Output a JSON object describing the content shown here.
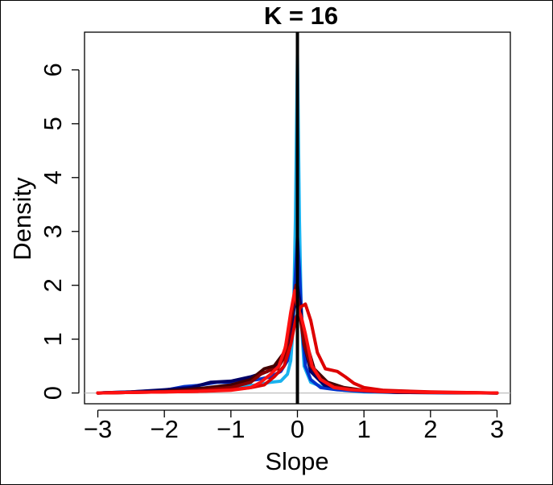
{
  "chart_data": {
    "type": "line",
    "title": "K = 16",
    "xlabel": "Slope",
    "ylabel": "Density",
    "xlim": [
      -3.2,
      3.2
    ],
    "ylim": [
      -0.2,
      6.7
    ],
    "x_ticks": [
      -3,
      -2,
      -1,
      0,
      1,
      2,
      3
    ],
    "x_tick_labels": [
      "−3",
      "−2",
      "−1",
      "0",
      "1",
      "2",
      "3"
    ],
    "y_ticks": [
      0,
      1,
      2,
      3,
      4,
      5,
      6
    ],
    "y_tick_labels": [
      "0",
      "1",
      "2",
      "3",
      "4",
      "5",
      "6"
    ],
    "reference_lines": {
      "horizontal_y": 0,
      "horizontal_color": "#bebebe",
      "vertical_x": 0,
      "vertical_color": "#000000"
    },
    "series": [
      {
        "name": "light-blue",
        "color": "#1ab2ee",
        "points": [
          [
            -3,
            0
          ],
          [
            -2.5,
            0.01
          ],
          [
            -2,
            0.04
          ],
          [
            -1.8,
            0.09
          ],
          [
            -1.5,
            0.08
          ],
          [
            -1.2,
            0.1
          ],
          [
            -1,
            0.12
          ],
          [
            -0.6,
            0.15
          ],
          [
            -0.4,
            0.2
          ],
          [
            -0.25,
            0.22
          ],
          [
            -0.15,
            0.35
          ],
          [
            -0.1,
            0.6
          ],
          [
            -0.06,
            1.3
          ],
          [
            -0.03,
            3.2
          ],
          [
            0,
            6.3
          ],
          [
            0.03,
            3.2
          ],
          [
            0.06,
            1.3
          ],
          [
            0.1,
            0.5
          ],
          [
            0.2,
            0.2
          ],
          [
            0.4,
            0.1
          ],
          [
            0.7,
            0.05
          ],
          [
            1,
            0.02
          ],
          [
            1.5,
            0.01
          ],
          [
            3,
            0
          ]
        ]
      },
      {
        "name": "blue",
        "color": "#0033cc",
        "points": [
          [
            -3,
            0
          ],
          [
            -2.5,
            0.02
          ],
          [
            -2,
            0.05
          ],
          [
            -1.7,
            0.12
          ],
          [
            -1.5,
            0.14
          ],
          [
            -1.2,
            0.2
          ],
          [
            -0.9,
            0.2
          ],
          [
            -0.6,
            0.25
          ],
          [
            -0.4,
            0.3
          ],
          [
            -0.25,
            0.4
          ],
          [
            -0.15,
            0.6
          ],
          [
            -0.08,
            1.1
          ],
          [
            -0.03,
            2.2
          ],
          [
            0,
            2.9
          ],
          [
            0.03,
            2.3
          ],
          [
            0.07,
            1.2
          ],
          [
            0.12,
            0.5
          ],
          [
            0.2,
            0.25
          ],
          [
            0.35,
            0.1
          ],
          [
            0.6,
            0.06
          ],
          [
            1,
            0.03
          ],
          [
            1.5,
            0.01
          ],
          [
            3,
            0
          ]
        ]
      },
      {
        "name": "navy",
        "color": "#000066",
        "points": [
          [
            -3,
            0
          ],
          [
            -2.5,
            0.02
          ],
          [
            -2,
            0.06
          ],
          [
            -1.6,
            0.1
          ],
          [
            -1.3,
            0.2
          ],
          [
            -1,
            0.22
          ],
          [
            -0.7,
            0.3
          ],
          [
            -0.45,
            0.4
          ],
          [
            -0.3,
            0.5
          ],
          [
            -0.15,
            0.8
          ],
          [
            -0.06,
            1.5
          ],
          [
            0,
            2.0
          ],
          [
            0.05,
            1.6
          ],
          [
            0.1,
            0.9
          ],
          [
            0.2,
            0.4
          ],
          [
            0.4,
            0.15
          ],
          [
            0.7,
            0.08
          ],
          [
            1,
            0.04
          ],
          [
            1.5,
            0.01
          ],
          [
            3,
            0
          ]
        ]
      },
      {
        "name": "dark-red",
        "color": "#440000",
        "points": [
          [
            -3,
            0
          ],
          [
            -2.5,
            0.01
          ],
          [
            -2,
            0.03
          ],
          [
            -1.5,
            0.08
          ],
          [
            -1,
            0.15
          ],
          [
            -0.7,
            0.25
          ],
          [
            -0.5,
            0.45
          ],
          [
            -0.35,
            0.5
          ],
          [
            -0.2,
            0.75
          ],
          [
            -0.1,
            1.3
          ],
          [
            -0.04,
            1.9
          ],
          [
            0,
            1.6
          ],
          [
            0.05,
            1.45
          ],
          [
            0.12,
            1.0
          ],
          [
            0.25,
            0.45
          ],
          [
            0.45,
            0.2
          ],
          [
            0.7,
            0.1
          ],
          [
            1,
            0.05
          ],
          [
            1.5,
            0.02
          ],
          [
            3,
            0
          ]
        ]
      },
      {
        "name": "maroon",
        "color": "#880000",
        "points": [
          [
            -3,
            0
          ],
          [
            -2.5,
            0.01
          ],
          [
            -2,
            0.02
          ],
          [
            -1.5,
            0.05
          ],
          [
            -1,
            0.1
          ],
          [
            -0.7,
            0.2
          ],
          [
            -0.55,
            0.35
          ],
          [
            -0.42,
            0.42
          ],
          [
            -0.3,
            0.45
          ],
          [
            -0.18,
            0.7
          ],
          [
            -0.08,
            1.5
          ],
          [
            -0.02,
            2.0
          ],
          [
            0.03,
            1.5
          ],
          [
            0.1,
            0.9
          ],
          [
            0.2,
            0.5
          ],
          [
            0.35,
            0.25
          ],
          [
            0.55,
            0.12
          ],
          [
            0.8,
            0.07
          ],
          [
            1.2,
            0.03
          ],
          [
            2,
            0.01
          ],
          [
            3,
            0
          ]
        ]
      },
      {
        "name": "red",
        "color": "#dd0000",
        "points": [
          [
            -3,
            0
          ],
          [
            -2.5,
            0.01
          ],
          [
            -2,
            0.02
          ],
          [
            -1.5,
            0.03
          ],
          [
            -1,
            0.06
          ],
          [
            -0.7,
            0.1
          ],
          [
            -0.5,
            0.15
          ],
          [
            -0.35,
            0.3
          ],
          [
            -0.2,
            0.5
          ],
          [
            -0.1,
            0.9
          ],
          [
            -0.02,
            1.4
          ],
          [
            0.05,
            1.6
          ],
          [
            0.12,
            1.65
          ],
          [
            0.2,
            1.35
          ],
          [
            0.3,
            0.75
          ],
          [
            0.42,
            0.45
          ],
          [
            0.6,
            0.4
          ],
          [
            0.72,
            0.3
          ],
          [
            0.85,
            0.18
          ],
          [
            1,
            0.1
          ],
          [
            1.3,
            0.05
          ],
          [
            2,
            0.02
          ],
          [
            3,
            0
          ]
        ]
      },
      {
        "name": "bright-red",
        "color": "#ff1111",
        "points": [
          [
            -3,
            0
          ],
          [
            -2.5,
            0.01
          ],
          [
            -2,
            0.02
          ],
          [
            -1.5,
            0.03
          ],
          [
            -1,
            0.05
          ],
          [
            -0.7,
            0.1
          ],
          [
            -0.55,
            0.2
          ],
          [
            -0.4,
            0.35
          ],
          [
            -0.28,
            0.5
          ],
          [
            -0.18,
            0.85
          ],
          [
            -0.1,
            1.5
          ],
          [
            -0.04,
            1.9
          ],
          [
            0,
            1.6
          ],
          [
            0.06,
            1.4
          ],
          [
            0.12,
            1.1
          ],
          [
            0.22,
            0.5
          ],
          [
            0.35,
            0.25
          ],
          [
            0.55,
            0.1
          ],
          [
            0.8,
            0.06
          ],
          [
            1.2,
            0.03
          ],
          [
            2,
            0.01
          ],
          [
            3,
            0
          ]
        ]
      }
    ]
  }
}
